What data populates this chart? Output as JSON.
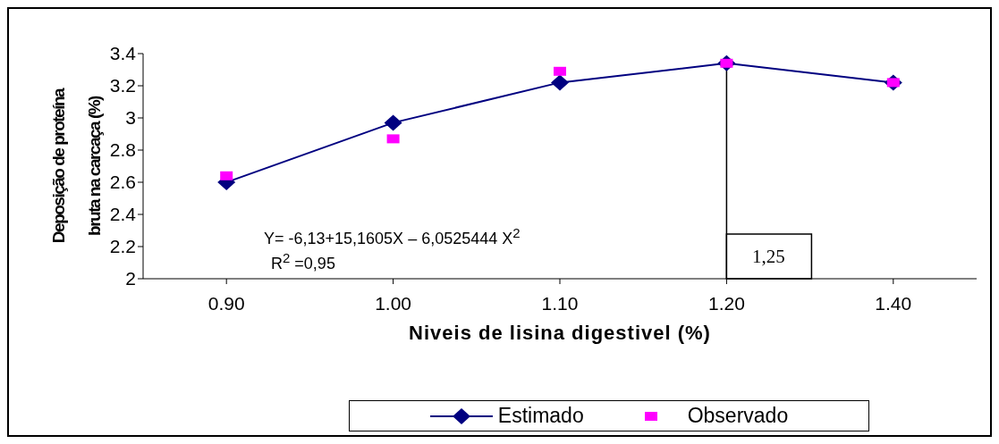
{
  "chart_data": {
    "type": "line",
    "xlabel": "Niveis de lisina digestivel (%)",
    "ylabel": "Deposição de proteína bruta na carcaça (%)",
    "categories": [
      "0.90",
      "1.00",
      "1.10",
      "1.20",
      "1.40"
    ],
    "series": [
      {
        "name": "Estimado",
        "color": "#000080",
        "marker": "diamond",
        "values": [
          2.6,
          2.97,
          3.22,
          3.34,
          3.22
        ]
      },
      {
        "name": "Observado",
        "type": "scatter",
        "color": "#ff00ff",
        "marker": "square",
        "values": [
          2.64,
          2.87,
          3.29,
          3.34,
          3.22
        ]
      }
    ],
    "ylim": [
      2,
      3.4
    ],
    "yticks": [
      2,
      2.2,
      2.4,
      2.6,
      2.8,
      3,
      3.2,
      3.4
    ],
    "legend": "bottom",
    "ref_lines": [
      {
        "axis": "x",
        "value": "1.20",
        "label": "1,25",
        "color": "#000000"
      }
    ],
    "annotations": [
      "Y= -6,13+15,1605X – 6,0525444 X$^{2}$",
      "R$^{2}$ =0,95"
    ]
  }
}
